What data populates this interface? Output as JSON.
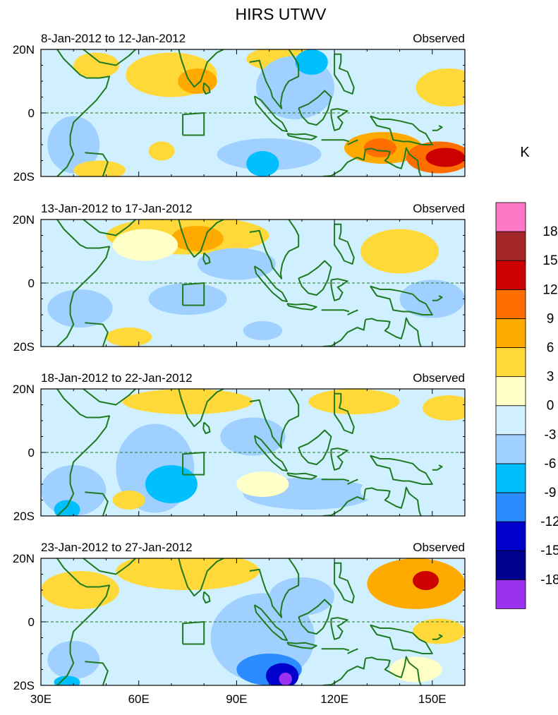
{
  "chart_data": {
    "type": "heatmap",
    "title": "HIRS UTWV",
    "units": "K",
    "colorbar": {
      "levels": [
        "-18",
        "-15",
        "-12",
        "-9",
        "-6",
        "-3",
        "0",
        "3",
        "6",
        "9",
        "12",
        "15",
        "18"
      ],
      "colors": [
        "#9a32f0",
        "#000090",
        "#0000cc",
        "#2a8cff",
        "#00bfff",
        "#a0d0ff",
        "#d0f0ff",
        "#ffffc8",
        "#ffd839",
        "#ffaa00",
        "#ff6e00",
        "#cc0000",
        "#a52828",
        "#ff78c8"
      ]
    },
    "x_axis": {
      "range": [
        30,
        160
      ],
      "ticks": [
        30,
        60,
        90,
        120,
        150
      ],
      "tick_labels": [
        "30E",
        "60E",
        "90E",
        "120E",
        "150E"
      ]
    },
    "y_axis": {
      "range": [
        -20,
        20
      ],
      "ticks": [
        20,
        0,
        -20
      ],
      "tick_labels": [
        "20N",
        "0",
        "20S"
      ]
    },
    "panels": [
      {
        "left_title": "8-Jan-2012 to 12-Jan-2012",
        "right_title": "Observed",
        "anomalies": [
          {
            "lon": 70,
            "lat": 12,
            "rx": 14,
            "ry": 7,
            "v": 4
          },
          {
            "lon": 78,
            "lat": 10,
            "rx": 6,
            "ry": 4,
            "v": 7
          },
          {
            "lon": 105,
            "lat": 17,
            "rx": 12,
            "ry": 4,
            "v": 4
          },
          {
            "lon": 108,
            "lat": 8,
            "rx": 12,
            "ry": 10,
            "v": -5
          },
          {
            "lon": 113,
            "lat": 16,
            "rx": 5,
            "ry": 4,
            "v": -8
          },
          {
            "lon": 100,
            "lat": -13,
            "rx": 16,
            "ry": 5,
            "v": -4
          },
          {
            "lon": 98,
            "lat": -16,
            "rx": 5,
            "ry": 4,
            "v": -8
          },
          {
            "lon": 40,
            "lat": -10,
            "rx": 8,
            "ry": 9,
            "v": -4
          },
          {
            "lon": 67,
            "lat": -12,
            "rx": 4,
            "ry": 3,
            "v": 4
          },
          {
            "lon": 135,
            "lat": -11,
            "rx": 12,
            "ry": 5,
            "v": 6
          },
          {
            "lon": 134,
            "lat": -11,
            "rx": 5,
            "ry": 3,
            "v": 10
          },
          {
            "lon": 152,
            "lat": -14,
            "rx": 10,
            "ry": 5,
            "v": 10
          },
          {
            "lon": 154,
            "lat": -14,
            "rx": 6,
            "ry": 3,
            "v": 14
          },
          {
            "lon": 47,
            "lat": 15,
            "rx": 7,
            "ry": 4,
            "v": 3
          },
          {
            "lon": 155,
            "lat": 8,
            "rx": 10,
            "ry": 6,
            "v": 3
          },
          {
            "lon": 48,
            "lat": -18,
            "rx": 8,
            "ry": 3,
            "v": 4
          }
        ]
      },
      {
        "left_title": "13-Jan-2012 to 17-Jan-2012",
        "right_title": "Observed",
        "anomalies": [
          {
            "lon": 75,
            "lat": 15,
            "rx": 25,
            "ry": 6,
            "v": 4
          },
          {
            "lon": 78,
            "lat": 14,
            "rx": 8,
            "ry": 4,
            "v": 6
          },
          {
            "lon": 90,
            "lat": 6,
            "rx": 12,
            "ry": 5,
            "v": -4
          },
          {
            "lon": 75,
            "lat": -5,
            "rx": 12,
            "ry": 5,
            "v": -5
          },
          {
            "lon": 42,
            "lat": -8,
            "rx": 10,
            "ry": 6,
            "v": -4
          },
          {
            "lon": 57,
            "lat": -17,
            "rx": 7,
            "ry": 3,
            "v": 5
          },
          {
            "lon": 140,
            "lat": 10,
            "rx": 12,
            "ry": 7,
            "v": 4
          },
          {
            "lon": 150,
            "lat": -5,
            "rx": 10,
            "ry": 6,
            "v": -4
          },
          {
            "lon": 112,
            "lat": -10,
            "rx": 20,
            "ry": 6,
            "v": -3
          },
          {
            "lon": 98,
            "lat": -15,
            "rx": 6,
            "ry": 3,
            "v": -5
          },
          {
            "lon": 62,
            "lat": 12,
            "rx": 10,
            "ry": 5,
            "v": 2
          }
        ]
      },
      {
        "left_title": "18-Jan-2012 to 22-Jan-2012",
        "right_title": "Observed",
        "anomalies": [
          {
            "lon": 75,
            "lat": 16,
            "rx": 20,
            "ry": 4,
            "v": 4
          },
          {
            "lon": 126,
            "lat": 16,
            "rx": 14,
            "ry": 4,
            "v": 5
          },
          {
            "lon": 155,
            "lat": 14,
            "rx": 8,
            "ry": 4,
            "v": 4
          },
          {
            "lon": 65,
            "lat": -5,
            "rx": 12,
            "ry": 14,
            "v": -6
          },
          {
            "lon": 70,
            "lat": -10,
            "rx": 8,
            "ry": 6,
            "v": -8
          },
          {
            "lon": 40,
            "lat": -12,
            "rx": 10,
            "ry": 8,
            "v": -5
          },
          {
            "lon": 38,
            "lat": -18,
            "rx": 4,
            "ry": 3,
            "v": -9
          },
          {
            "lon": 95,
            "lat": 5,
            "rx": 10,
            "ry": 6,
            "v": -5
          },
          {
            "lon": 112,
            "lat": -13,
            "rx": 20,
            "ry": 5,
            "v": -5
          },
          {
            "lon": 57,
            "lat": -15,
            "rx": 5,
            "ry": 3,
            "v": 4
          },
          {
            "lon": 140,
            "lat": -12,
            "rx": 12,
            "ry": 5,
            "v": -3
          },
          {
            "lon": 98,
            "lat": -10,
            "rx": 8,
            "ry": 4,
            "v": 2
          }
        ]
      },
      {
        "left_title": "23-Jan-2012 to 27-Jan-2012",
        "right_title": "Observed",
        "anomalies": [
          {
            "lon": 75,
            "lat": 16,
            "rx": 22,
            "ry": 6,
            "v": 5
          },
          {
            "lon": 42,
            "lat": 10,
            "rx": 12,
            "ry": 6,
            "v": 4
          },
          {
            "lon": 145,
            "lat": 12,
            "rx": 15,
            "ry": 8,
            "v": 6
          },
          {
            "lon": 148,
            "lat": 13,
            "rx": 4,
            "ry": 3,
            "v": 12
          },
          {
            "lon": 152,
            "lat": -3,
            "rx": 8,
            "ry": 4,
            "v": 5
          },
          {
            "lon": 98,
            "lat": -5,
            "rx": 16,
            "ry": 14,
            "v": -6
          },
          {
            "lon": 100,
            "lat": -15,
            "rx": 10,
            "ry": 5,
            "v": -10
          },
          {
            "lon": 104,
            "lat": -17,
            "rx": 5,
            "ry": 4,
            "v": -15
          },
          {
            "lon": 105,
            "lat": -18,
            "rx": 2,
            "ry": 2,
            "v": -19
          },
          {
            "lon": 110,
            "lat": 8,
            "rx": 10,
            "ry": 6,
            "v": -5
          },
          {
            "lon": 40,
            "lat": -12,
            "rx": 8,
            "ry": 6,
            "v": -4
          },
          {
            "lon": 38,
            "lat": -19,
            "rx": 4,
            "ry": 2,
            "v": -8
          },
          {
            "lon": 125,
            "lat": -12,
            "rx": 12,
            "ry": 6,
            "v": -3
          },
          {
            "lon": 60,
            "lat": -8,
            "rx": 10,
            "ry": 5,
            "v": -3
          },
          {
            "lon": 145,
            "lat": -15,
            "rx": 8,
            "ry": 4,
            "v": 2
          }
        ]
      }
    ]
  }
}
